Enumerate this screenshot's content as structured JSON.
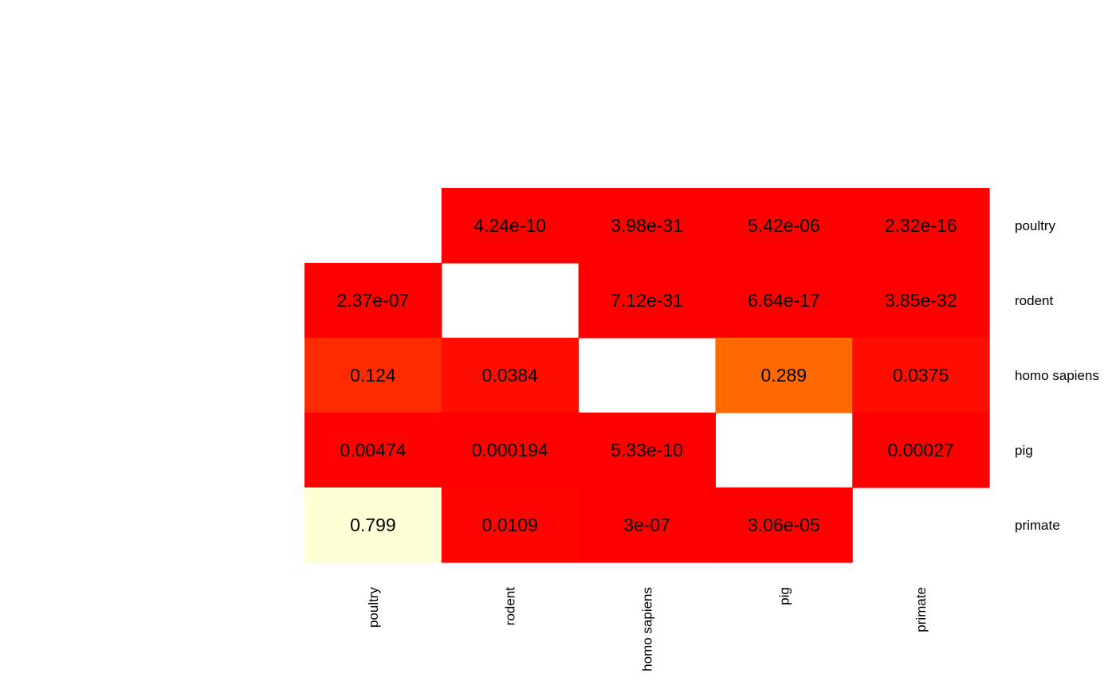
{
  "chart_data": {
    "type": "heatmap",
    "title": "",
    "xlabel": "",
    "ylabel": "",
    "rows": [
      "poultry",
      "rodent",
      "homo sapiens",
      "pig",
      "primate"
    ],
    "columns": [
      "poultry",
      "rodent",
      "homo sapiens",
      "pig",
      "primate"
    ],
    "values": [
      [
        null,
        4.24e-10,
        3.98e-31,
        5.42e-06,
        2.32e-16
      ],
      [
        2.37e-07,
        null,
        7.12e-31,
        6.64e-17,
        3.85e-32
      ],
      [
        0.124,
        0.0384,
        null,
        0.289,
        0.0375
      ],
      [
        0.00474,
        0.000194,
        5.33e-10,
        null,
        0.00027
      ],
      [
        0.799,
        0.0109,
        3e-07,
        3.06e-05,
        null
      ]
    ],
    "labels": [
      [
        null,
        "4.24e-10",
        "3.98e-31",
        "5.42e-06",
        "2.32e-16"
      ],
      [
        "2.37e-07",
        null,
        "7.12e-31",
        "6.64e-17",
        "3.85e-32"
      ],
      [
        "0.124",
        "0.0384",
        null,
        "0.289",
        "0.0375"
      ],
      [
        "0.00474",
        "0.000194",
        "5.33e-10",
        null,
        "0.00027"
      ],
      [
        "0.799",
        "0.0109",
        "3e-07",
        "3.06e-05",
        null
      ]
    ],
    "colors": {
      "scale": [
        "#FF0000",
        "#FF2200",
        "#FF6D00",
        "#FFFFD5"
      ],
      "scale_breaks": [
        0,
        0.1,
        0.3,
        0.8
      ]
    },
    "row_labels_position": "right",
    "column_labels_position": "bottom",
    "column_labels_rotation": "vertical",
    "legend": "none",
    "grid": false
  }
}
